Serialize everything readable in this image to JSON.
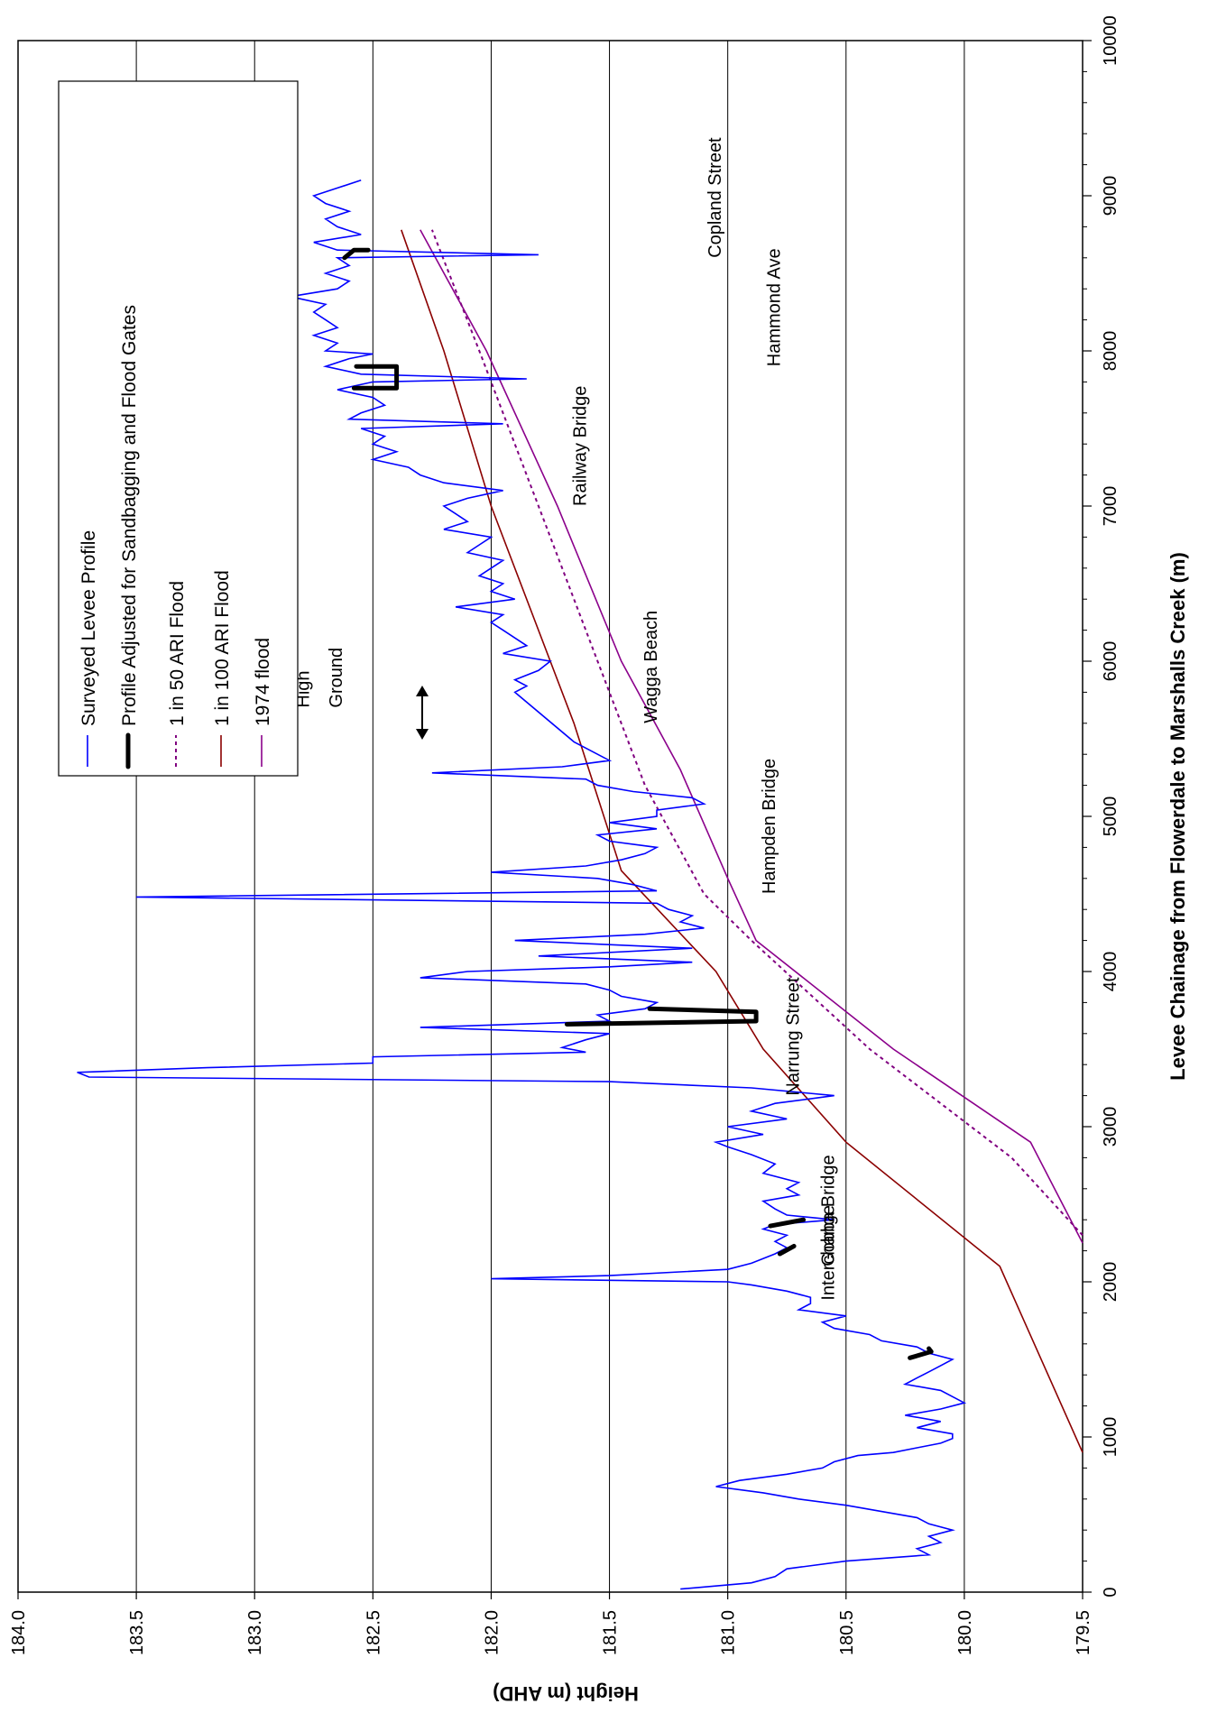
{
  "chart_data": {
    "type": "line",
    "orientation": "rotated-90-ccw",
    "title": "",
    "xlabel": "Levee Chainage from Flowerdale to Marshalls Creek (m)",
    "ylabel": "Height (m AHD)",
    "xlim": [
      0,
      10000
    ],
    "ylim": [
      179.5,
      184.0
    ],
    "x_ticks": [
      "0",
      "1000",
      "2000",
      "3000",
      "4000",
      "5000",
      "6000",
      "7000",
      "8000",
      "9000",
      "10000"
    ],
    "y_ticks": [
      "179.5",
      "180.0",
      "180.5",
      "181.0",
      "181.5",
      "182.0",
      "182.5",
      "183.0",
      "183.5",
      "184.0"
    ],
    "grid": "horizontal-major",
    "legend_position": "top-left",
    "series": [
      {
        "name": "Surveyed Levee Profile",
        "color": "#0000ff",
        "style": "solid",
        "points": [
          [
            20,
            181.2
          ],
          [
            60,
            180.9
          ],
          [
            100,
            180.8
          ],
          [
            150,
            180.75
          ],
          [
            200,
            180.5
          ],
          [
            240,
            180.15
          ],
          [
            280,
            180.2
          ],
          [
            320,
            180.1
          ],
          [
            360,
            180.15
          ],
          [
            400,
            180.05
          ],
          [
            440,
            180.15
          ],
          [
            480,
            180.2
          ],
          [
            520,
            180.35
          ],
          [
            560,
            180.5
          ],
          [
            600,
            180.7
          ],
          [
            640,
            180.85
          ],
          [
            680,
            181.05
          ],
          [
            720,
            180.95
          ],
          [
            760,
            180.75
          ],
          [
            800,
            180.6
          ],
          [
            840,
            180.55
          ],
          [
            880,
            180.45
          ],
          [
            900,
            180.3
          ],
          [
            930,
            180.2
          ],
          [
            960,
            180.1
          ],
          [
            990,
            180.05
          ],
          [
            1020,
            180.05
          ],
          [
            1060,
            180.2
          ],
          [
            1100,
            180.1
          ],
          [
            1140,
            180.25
          ],
          [
            1180,
            180.1
          ],
          [
            1220,
            180.0
          ],
          [
            1260,
            180.05
          ],
          [
            1300,
            180.1
          ],
          [
            1340,
            180.25
          ],
          [
            1380,
            180.2
          ],
          [
            1420,
            180.15
          ],
          [
            1460,
            180.1
          ],
          [
            1500,
            180.05
          ],
          [
            1540,
            180.15
          ],
          [
            1580,
            180.2
          ],
          [
            1620,
            180.35
          ],
          [
            1660,
            180.4
          ],
          [
            1700,
            180.55
          ],
          [
            1740,
            180.6
          ],
          [
            1780,
            180.5
          ],
          [
            1820,
            180.7
          ],
          [
            1860,
            180.65
          ],
          [
            1900,
            180.65
          ],
          [
            1940,
            180.75
          ],
          [
            1980,
            180.9
          ],
          [
            2000,
            181.0
          ],
          [
            2020,
            182.0
          ],
          [
            2040,
            181.5
          ],
          [
            2080,
            181.0
          ],
          [
            2120,
            180.9
          ],
          [
            2180,
            180.8
          ],
          [
            2220,
            180.75
          ],
          [
            2260,
            180.8
          ],
          [
            2300,
            180.75
          ],
          [
            2340,
            180.85
          ],
          [
            2370,
            180.8
          ],
          [
            2400,
            180.55
          ],
          [
            2430,
            180.75
          ],
          [
            2470,
            180.8
          ],
          [
            2520,
            180.85
          ],
          [
            2560,
            180.7
          ],
          [
            2600,
            180.75
          ],
          [
            2640,
            180.7
          ],
          [
            2700,
            180.85
          ],
          [
            2760,
            180.8
          ],
          [
            2820,
            180.9
          ],
          [
            2870,
            181.0
          ],
          [
            2900,
            181.05
          ],
          [
            2950,
            180.85
          ],
          [
            3000,
            181.0
          ],
          [
            3050,
            180.75
          ],
          [
            3100,
            180.9
          ],
          [
            3150,
            180.8
          ],
          [
            3200,
            180.55
          ],
          [
            3250,
            180.9
          ],
          [
            3290,
            181.5
          ],
          [
            3320,
            183.7
          ],
          [
            3350,
            183.75
          ],
          [
            3380,
            183.2
          ],
          [
            3410,
            182.5
          ],
          [
            3450,
            182.5
          ],
          [
            3480,
            181.6
          ],
          [
            3510,
            181.7
          ],
          [
            3560,
            181.6
          ],
          [
            3600,
            181.5
          ],
          [
            3640,
            182.3
          ],
          [
            3680,
            181.5
          ],
          [
            3720,
            181.55
          ],
          [
            3760,
            181.35
          ],
          [
            3800,
            181.3
          ],
          [
            3840,
            181.45
          ],
          [
            3880,
            181.5
          ],
          [
            3920,
            181.6
          ],
          [
            3960,
            182.3
          ],
          [
            4000,
            182.1
          ],
          [
            4030,
            181.5
          ],
          [
            4060,
            181.15
          ],
          [
            4100,
            181.8
          ],
          [
            4150,
            181.15
          ],
          [
            4200,
            181.9
          ],
          [
            4240,
            181.35
          ],
          [
            4280,
            181.1
          ],
          [
            4320,
            181.2
          ],
          [
            4360,
            181.15
          ],
          [
            4400,
            181.25
          ],
          [
            4440,
            181.3
          ],
          [
            4480,
            183.5
          ],
          [
            4520,
            181.3
          ],
          [
            4560,
            181.4
          ],
          [
            4600,
            181.55
          ],
          [
            4640,
            182.0
          ],
          [
            4680,
            181.6
          ],
          [
            4720,
            181.45
          ],
          [
            4760,
            181.35
          ],
          [
            4800,
            181.3
          ],
          [
            4840,
            181.5
          ],
          [
            4880,
            181.55
          ],
          [
            4920,
            181.3
          ],
          [
            4960,
            181.5
          ],
          [
            5000,
            181.3
          ],
          [
            5040,
            181.3
          ],
          [
            5080,
            181.1
          ],
          [
            5120,
            181.15
          ],
          [
            5160,
            181.4
          ],
          [
            5200,
            181.55
          ],
          [
            5240,
            181.6
          ],
          [
            5280,
            182.25
          ],
          [
            5320,
            181.7
          ],
          [
            5360,
            181.5
          ],
          [
            5400,
            181.55
          ],
          [
            5440,
            181.6
          ],
          [
            5480,
            181.65
          ],
          [
            5800,
            181.9
          ],
          [
            5840,
            181.85
          ],
          [
            5880,
            181.9
          ],
          [
            5940,
            181.8
          ],
          [
            6000,
            181.75
          ],
          [
            6050,
            181.95
          ],
          [
            6100,
            181.85
          ],
          [
            6150,
            181.9
          ],
          [
            6200,
            181.95
          ],
          [
            6250,
            182.0
          ],
          [
            6300,
            181.95
          ],
          [
            6350,
            182.15
          ],
          [
            6400,
            181.9
          ],
          [
            6450,
            182.0
          ],
          [
            6500,
            181.95
          ],
          [
            6550,
            182.05
          ],
          [
            6600,
            182.0
          ],
          [
            6650,
            181.95
          ],
          [
            6700,
            182.1
          ],
          [
            6750,
            182.05
          ],
          [
            6800,
            182.0
          ],
          [
            6850,
            182.2
          ],
          [
            6900,
            182.1
          ],
          [
            6950,
            182.15
          ],
          [
            7000,
            182.2
          ],
          [
            7050,
            182.1
          ],
          [
            7100,
            181.95
          ],
          [
            7150,
            182.2
          ],
          [
            7200,
            182.3
          ],
          [
            7250,
            182.35
          ],
          [
            7300,
            182.5
          ],
          [
            7350,
            182.4
          ],
          [
            7400,
            182.5
          ],
          [
            7450,
            182.45
          ],
          [
            7500,
            182.55
          ],
          [
            7530,
            181.95
          ],
          [
            7560,
            182.6
          ],
          [
            7600,
            182.55
          ],
          [
            7650,
            182.45
          ],
          [
            7700,
            182.5
          ],
          [
            7750,
            182.65
          ],
          [
            7800,
            182.5
          ],
          [
            7820,
            181.85
          ],
          [
            7850,
            182.55
          ],
          [
            7900,
            182.7
          ],
          [
            7950,
            182.6
          ],
          [
            7980,
            182.5
          ],
          [
            8000,
            182.7
          ],
          [
            8050,
            182.65
          ],
          [
            8100,
            182.75
          ],
          [
            8150,
            182.65
          ],
          [
            8200,
            182.7
          ],
          [
            8250,
            182.75
          ],
          [
            8300,
            182.7
          ],
          [
            8350,
            182.85
          ],
          [
            8400,
            182.65
          ],
          [
            8450,
            182.6
          ],
          [
            8500,
            182.7
          ],
          [
            8550,
            182.6
          ],
          [
            8600,
            182.65
          ],
          [
            8620,
            181.8
          ],
          [
            8650,
            182.65
          ],
          [
            8700,
            182.75
          ],
          [
            8750,
            182.55
          ],
          [
            8800,
            182.65
          ],
          [
            8850,
            182.7
          ],
          [
            8900,
            182.6
          ],
          [
            8950,
            182.7
          ],
          [
            9000,
            182.75
          ],
          [
            9050,
            182.65
          ],
          [
            9100,
            182.55
          ]
        ]
      },
      {
        "name": "Profile Adjusted for Sandbagging and Flood Gates",
        "color": "#000000",
        "style": "thick",
        "segments": [
          [
            [
              1510,
              180.23
            ],
            [
              1550,
              180.14
            ],
            [
              1570,
              180.15
            ]
          ],
          [
            [
              2180,
              180.78
            ],
            [
              2230,
              180.72
            ]
          ],
          [
            [
              2360,
              180.82
            ],
            [
              2400,
              180.68
            ]
          ],
          [
            [
              3660,
              181.68
            ],
            [
              3680,
              180.88
            ],
            [
              3740,
              180.88
            ],
            [
              3760,
              181.33
            ]
          ],
          [
            [
              7760,
              182.58
            ],
            [
              7760,
              182.4
            ],
            [
              7900,
              182.4
            ],
            [
              7900,
              182.57
            ]
          ],
          [
            [
              8600,
              182.62
            ],
            [
              8650,
              182.58
            ],
            [
              8650,
              182.52
            ]
          ]
        ]
      },
      {
        "name": "1 in 50 ARI Flood",
        "color": "#800080",
        "style": "dotted",
        "points": [
          [
            2300,
            179.5
          ],
          [
            2800,
            179.8
          ],
          [
            3500,
            180.4
          ],
          [
            4200,
            180.9
          ],
          [
            4500,
            181.1
          ],
          [
            5200,
            181.35
          ],
          [
            6000,
            181.55
          ],
          [
            7000,
            181.8
          ],
          [
            8000,
            182.05
          ],
          [
            8780,
            182.25
          ]
        ]
      },
      {
        "name": "1 in 100 ARI Flood",
        "color": "#8b0000",
        "style": "solid",
        "points": [
          [
            900,
            179.5
          ],
          [
            2100,
            179.85
          ],
          [
            2900,
            180.5
          ],
          [
            3500,
            180.85
          ],
          [
            4000,
            181.05
          ],
          [
            4650,
            181.45
          ],
          [
            5600,
            181.65
          ],
          [
            7000,
            182.0
          ],
          [
            8000,
            182.2
          ],
          [
            8780,
            182.38
          ]
        ]
      },
      {
        "name": "1974 flood",
        "color": "#8b008b",
        "style": "solid",
        "points": [
          [
            2250,
            179.5
          ],
          [
            2900,
            179.72
          ],
          [
            3500,
            180.3
          ],
          [
            4200,
            180.88
          ],
          [
            4600,
            181.0
          ],
          [
            5300,
            181.2
          ],
          [
            6000,
            181.45
          ],
          [
            7000,
            181.72
          ],
          [
            8000,
            182.02
          ],
          [
            8780,
            182.3
          ]
        ]
      }
    ],
    "annotations": [
      {
        "text": "Copland Street",
        "x": 8600,
        "y": 181.03
      },
      {
        "text": "Hammond Ave",
        "x": 7900,
        "y": 180.78
      },
      {
        "text": "Railway Bridge",
        "x": 7000,
        "y": 181.6
      },
      {
        "text": "Wagga Beach",
        "x": 5600,
        "y": 181.3
      },
      {
        "text": "Hampden Bridge",
        "x": 4500,
        "y": 180.8
      },
      {
        "text": "Narrung Street",
        "x": 3200,
        "y": 180.7
      },
      {
        "text": "Gobba Bridge",
        "x": 2100,
        "y": 180.55
      },
      {
        "text": "Interchange",
        "x": 1880,
        "y": 180.55
      },
      {
        "text": "High",
        "x": 5700,
        "y": 182.77
      },
      {
        "text": "Ground",
        "x": 5700,
        "y": 182.63
      }
    ]
  }
}
